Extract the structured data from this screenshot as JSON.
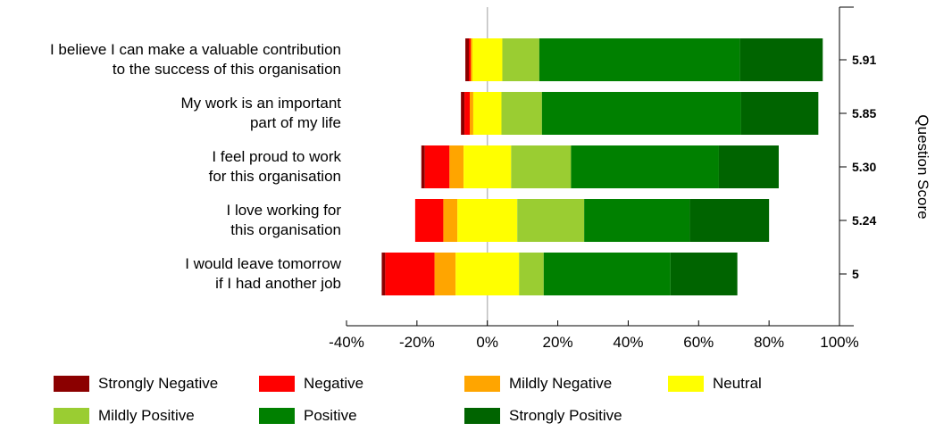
{
  "chart_data": {
    "type": "bar",
    "orientation": "horizontal",
    "stacked": "diverging",
    "categories": [
      [
        "I believe I can make a valuable contribution",
        "to the success of this organisation"
      ],
      [
        "My work is an important",
        "part of my life"
      ],
      [
        "I feel proud to work",
        "for this organisation"
      ],
      [
        "I love working for",
        "this organisation"
      ],
      [
        "I would leave tomorrow",
        "if I had another job"
      ]
    ],
    "scores": [
      "5.91",
      "5.85",
      "5.30",
      "5.24",
      "5"
    ],
    "secondary_axis_title": "Question Score",
    "xlim": [
      -40,
      100
    ],
    "xticks": [
      -40,
      -20,
      0,
      20,
      40,
      60,
      80,
      100
    ],
    "xtick_labels": [
      "-40%",
      "-20%",
      "0%",
      "20%",
      "40%",
      "60%",
      "80%",
      "100%"
    ],
    "grid": false,
    "legend_position": "bottom",
    "series": [
      {
        "name": "Strongly Negative",
        "color": "#8B0000",
        "values": [
          1,
          1,
          1,
          0,
          1
        ]
      },
      {
        "name": "Negative",
        "color": "#FF0000",
        "values": [
          0.5,
          1.5,
          7,
          8,
          14
        ]
      },
      {
        "name": "Mildly Negative",
        "color": "#FFA500",
        "values": [
          0.5,
          1,
          4,
          4,
          6
        ]
      },
      {
        "name": "Neutral",
        "color": "#FFFF00",
        "values": [
          8.5,
          8,
          13.5,
          17,
          18
        ]
      },
      {
        "name": "Mildly Positive",
        "color": "#9ACD32",
        "values": [
          10.5,
          11.5,
          17,
          19,
          7
        ]
      },
      {
        "name": "Positive",
        "color": "#008000",
        "values": [
          57,
          56.5,
          42,
          30,
          36
        ]
      },
      {
        "name": "Strongly Positive",
        "color": "#006400",
        "values": [
          23.5,
          22,
          17,
          22.5,
          19
        ]
      }
    ]
  }
}
